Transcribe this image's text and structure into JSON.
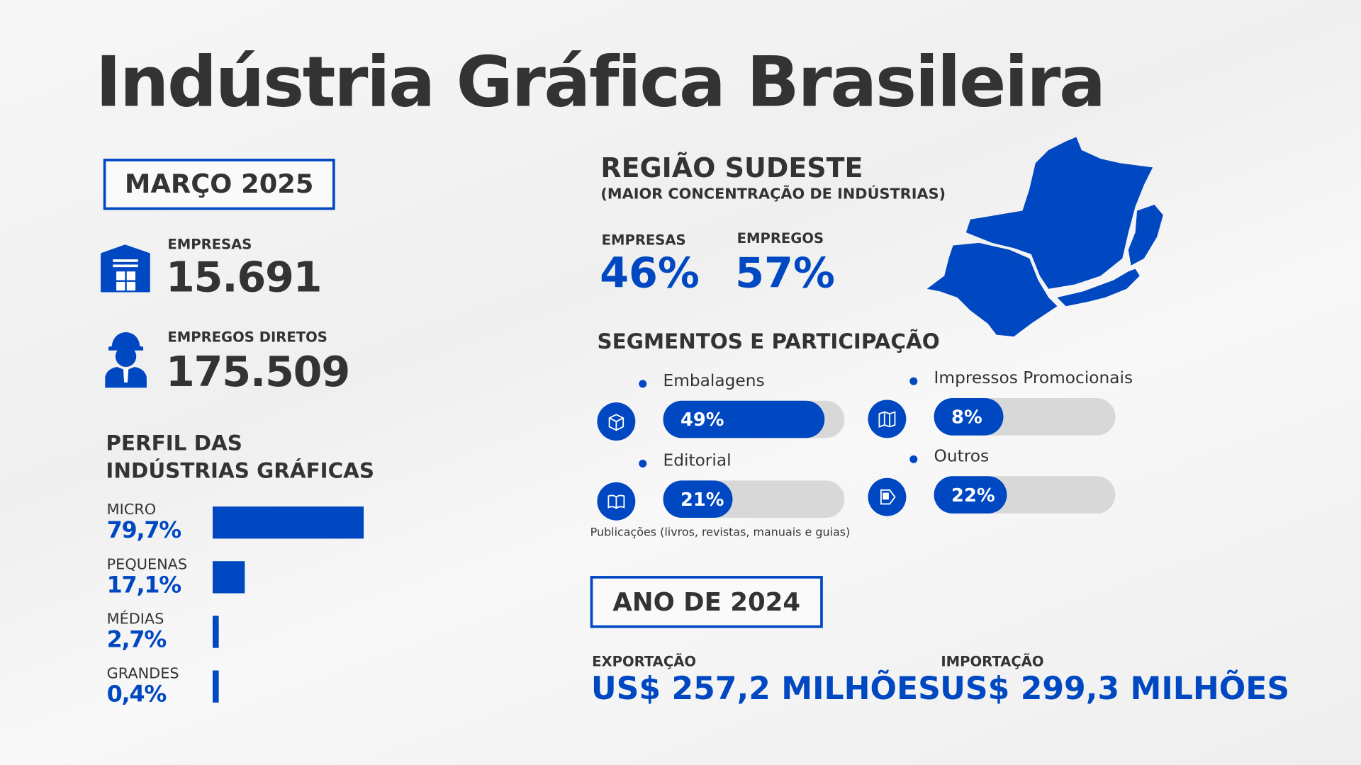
{
  "title": "Indústria Gráfica Brasileira",
  "period": "MARÇO 2025",
  "stats": [
    {
      "label": "EMPRESAS",
      "value": "15.691",
      "icon": "warehouse-icon"
    },
    {
      "label": "EMPREGOS DIRETOS",
      "value": "175.509",
      "icon": "worker-icon"
    }
  ],
  "profile": {
    "title_line1": "PERFIL DAS",
    "title_line2": "INDÚSTRIAS GRÁFICAS",
    "items": [
      {
        "label": "MICRO",
        "value": "79,7%",
        "pct": 79.7
      },
      {
        "label": "PEQUENAS",
        "value": "17,1%",
        "pct": 17.1
      },
      {
        "label": "MÉDIAS",
        "value": "2,7%",
        "pct": 2.7
      },
      {
        "label": "GRANDES",
        "value": "0,4%",
        "pct": 0.4
      }
    ]
  },
  "region": {
    "title": "REGIÃO SUDESTE",
    "subtitle": "(MAIOR CONCENTRAÇÃO DE INDÚSTRIAS)",
    "empresas_label": "EMPRESAS",
    "empresas_value": "46%",
    "empregos_label": "EMPREGOS",
    "empregos_value": "57%"
  },
  "segments": {
    "title": "SEGMENTOS E PARTICIPAÇÃO",
    "items": [
      {
        "label": "Embalagens",
        "value": "49%",
        "pct": 49,
        "icon": "package-icon"
      },
      {
        "label": "Impressos Promocionais",
        "value": "8%",
        "pct": 8,
        "icon": "brochure-icon"
      },
      {
        "label": "Editorial",
        "value": "21%",
        "pct": 21,
        "icon": "book-icon"
      },
      {
        "label": "Outros",
        "value": "22%",
        "pct": 22,
        "icon": "image-tag-icon"
      }
    ],
    "editorial_note": "Publicações (livros, revistas, manuais e guias)"
  },
  "year": {
    "title": "ANO DE 2024",
    "export_label": "EXPORTAÇÃO",
    "export_value": "US$ 257,2 MILHÕES",
    "import_label": "IMPORTAÇÃO",
    "import_value": "US$ 299,3 MILHÕES"
  },
  "colors": {
    "accent": "#0047c2",
    "text": "#333333",
    "track": "#d8d8d8"
  }
}
